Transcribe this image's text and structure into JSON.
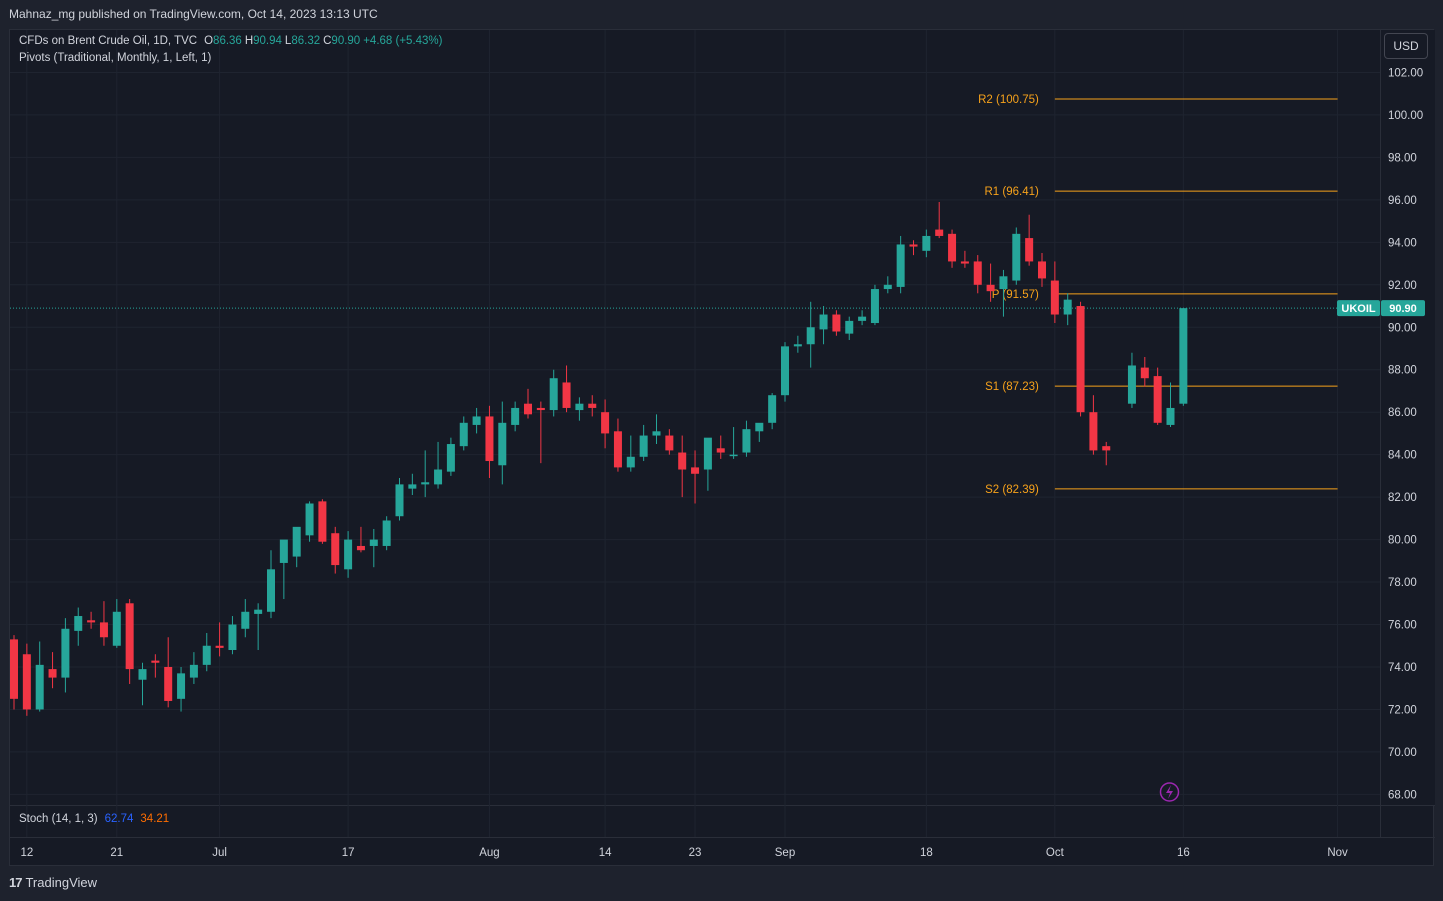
{
  "header": {
    "publish_text": "Mahnaz_mg published on TradingView.com, Oct 14, 2023 13:13 UTC"
  },
  "legend": {
    "symbol": "CFDs on Brent Crude Oil, 1D, TVC",
    "o_label": "O",
    "o_value": "86.36",
    "h_label": "H",
    "h_value": "90.94",
    "l_label": "L",
    "l_value": "86.32",
    "c_label": "C",
    "c_value": "90.90",
    "change": "+4.68 (+5.43%)",
    "pivots": "Pivots (Traditional, Monthly, 1, Left, 1)"
  },
  "currency_button": "USD",
  "stoch": {
    "label": "Stoch (14, 1, 3)",
    "k": "62.74",
    "d": "34.21"
  },
  "footer": {
    "logo_text": "TradingView",
    "logo_glyph": "17"
  },
  "colors": {
    "up": "#26a69a",
    "down": "#f23645",
    "pivot": "#f7a21b",
    "background": "#161a25",
    "grid": "#1f2430",
    "text": "#d1d4dc",
    "stoch_k": "#2962ff",
    "stoch_d": "#ff6d00"
  },
  "chart_data": {
    "type": "candlestick",
    "symbol_tag": "UKOIL",
    "last_price": 90.9,
    "last_price_label": "90.90",
    "ylim": [
      67.5,
      104
    ],
    "y_ticks": [
      "102.00",
      "100.00",
      "98.00",
      "96.00",
      "94.00",
      "92.00",
      "90.00",
      "88.00",
      "86.00",
      "84.00",
      "82.00",
      "80.00",
      "78.00",
      "76.00",
      "74.00",
      "72.00",
      "70.00",
      "68.00"
    ],
    "x_ticks": [
      {
        "index": 1,
        "label": "12"
      },
      {
        "index": 8,
        "label": "21"
      },
      {
        "index": 16,
        "label": "Jul"
      },
      {
        "index": 26,
        "label": "17"
      },
      {
        "index": 37,
        "label": "Aug"
      },
      {
        "index": 46,
        "label": "14"
      },
      {
        "index": 53,
        "label": "23"
      },
      {
        "index": 60,
        "label": "Sep"
      },
      {
        "index": 71,
        "label": "18"
      },
      {
        "index": 81,
        "label": "Oct"
      },
      {
        "index": 91,
        "label": "16"
      },
      {
        "index": 103,
        "label": "Nov"
      }
    ],
    "ohlc": [
      [
        75.3,
        75.5,
        72.0,
        72.5
      ],
      [
        74.6,
        75.1,
        71.7,
        72.0
      ],
      [
        72.0,
        75.2,
        71.9,
        74.1
      ],
      [
        73.9,
        74.7,
        73.0,
        73.5
      ],
      [
        73.5,
        76.3,
        72.8,
        75.8
      ],
      [
        75.7,
        76.8,
        75.0,
        76.4
      ],
      [
        76.2,
        76.6,
        75.8,
        76.1
      ],
      [
        76.1,
        77.1,
        75.0,
        75.4
      ],
      [
        75.0,
        77.2,
        74.9,
        76.6
      ],
      [
        77.0,
        77.2,
        73.2,
        73.9
      ],
      [
        73.4,
        74.2,
        72.2,
        73.9
      ],
      [
        74.3,
        74.6,
        73.5,
        74.2
      ],
      [
        74.0,
        75.4,
        72.1,
        72.4
      ],
      [
        72.5,
        74.0,
        71.9,
        73.7
      ],
      [
        73.5,
        74.7,
        73.2,
        74.1
      ],
      [
        74.1,
        75.6,
        73.8,
        75.0
      ],
      [
        75.0,
        76.1,
        74.5,
        74.9
      ],
      [
        74.8,
        76.4,
        74.6,
        76.0
      ],
      [
        75.8,
        77.2,
        75.4,
        76.6
      ],
      [
        76.5,
        77.0,
        74.8,
        76.7
      ],
      [
        76.6,
        79.5,
        76.3,
        78.6
      ],
      [
        78.9,
        79.3,
        77.2,
        80.0
      ],
      [
        79.2,
        80.2,
        78.7,
        80.6
      ],
      [
        80.2,
        81.8,
        79.9,
        81.7
      ],
      [
        81.8,
        81.9,
        79.8,
        79.9
      ],
      [
        80.3,
        80.6,
        78.4,
        78.8
      ],
      [
        78.6,
        80.4,
        78.2,
        80.0
      ],
      [
        79.7,
        80.6,
        79.4,
        79.5
      ],
      [
        79.7,
        80.5,
        78.7,
        80.0
      ],
      [
        79.7,
        81.1,
        79.5,
        80.9
      ],
      [
        81.1,
        82.9,
        80.9,
        82.6
      ],
      [
        82.4,
        83.1,
        82.1,
        82.6
      ],
      [
        82.6,
        84.2,
        82.0,
        82.7
      ],
      [
        82.6,
        84.6,
        82.4,
        83.3
      ],
      [
        83.2,
        84.8,
        83.0,
        84.5
      ],
      [
        84.4,
        85.8,
        84.2,
        85.5
      ],
      [
        85.4,
        86.2,
        85.0,
        85.8
      ],
      [
        85.8,
        86.3,
        82.9,
        83.7
      ],
      [
        83.5,
        86.5,
        82.6,
        85.5
      ],
      [
        85.4,
        86.5,
        85.1,
        86.2
      ],
      [
        86.4,
        87.1,
        85.7,
        85.9
      ],
      [
        86.2,
        86.5,
        83.6,
        86.1
      ],
      [
        86.1,
        88.0,
        85.8,
        87.6
      ],
      [
        87.4,
        88.2,
        86.0,
        86.2
      ],
      [
        86.1,
        86.7,
        85.6,
        86.4
      ],
      [
        86.4,
        86.8,
        85.8,
        86.2
      ],
      [
        86.0,
        86.6,
        84.3,
        85.0
      ],
      [
        85.1,
        85.7,
        83.2,
        83.4
      ],
      [
        83.4,
        84.9,
        83.2,
        83.9
      ],
      [
        83.9,
        85.4,
        83.7,
        84.9
      ],
      [
        84.9,
        85.9,
        84.5,
        85.1
      ],
      [
        84.9,
        85.2,
        84.0,
        84.2
      ],
      [
        84.1,
        84.9,
        82.0,
        83.3
      ],
      [
        83.4,
        84.2,
        81.7,
        83.1
      ],
      [
        83.3,
        84.4,
        82.3,
        84.8
      ],
      [
        84.3,
        84.9,
        83.8,
        84.1
      ],
      [
        84.0,
        85.3,
        83.8,
        84.0
      ],
      [
        84.1,
        85.6,
        83.9,
        85.2
      ],
      [
        85.1,
        85.4,
        84.6,
        85.5
      ],
      [
        85.5,
        86.9,
        85.2,
        86.8
      ],
      [
        86.8,
        89.3,
        86.5,
        89.1
      ],
      [
        89.1,
        89.6,
        88.8,
        89.2
      ],
      [
        89.2,
        91.2,
        88.1,
        90.0
      ],
      [
        89.9,
        91.0,
        89.2,
        90.6
      ],
      [
        90.6,
        90.8,
        89.6,
        89.8
      ],
      [
        89.7,
        90.5,
        89.4,
        90.3
      ],
      [
        90.3,
        90.8,
        90.1,
        90.5
      ],
      [
        90.2,
        92.0,
        90.1,
        91.8
      ],
      [
        91.8,
        92.4,
        91.6,
        92.0
      ],
      [
        91.9,
        94.3,
        91.6,
        93.9
      ],
      [
        93.9,
        94.1,
        93.4,
        93.8
      ],
      [
        93.6,
        94.6,
        93.3,
        94.3
      ],
      [
        94.6,
        95.9,
        94.2,
        94.3
      ],
      [
        94.4,
        94.6,
        92.8,
        93.1
      ],
      [
        93.1,
        93.6,
        92.8,
        93.0
      ],
      [
        93.1,
        93.4,
        91.6,
        92.0
      ],
      [
        92.0,
        93.0,
        91.2,
        91.7
      ],
      [
        91.8,
        92.7,
        90.5,
        92.4
      ],
      [
        92.2,
        94.7,
        92.0,
        94.4
      ],
      [
        94.2,
        95.3,
        92.9,
        93.1
      ],
      [
        93.1,
        93.5,
        91.9,
        92.3
      ],
      [
        92.2,
        93.1,
        90.2,
        90.6
      ],
      [
        90.6,
        91.6,
        90.1,
        91.3
      ],
      [
        91.0,
        91.2,
        85.8,
        86.0
      ],
      [
        86.0,
        86.8,
        84.0,
        84.2
      ],
      [
        84.4,
        84.6,
        83.5,
        84.2
      ],
      [
        null,
        null,
        null,
        null
      ],
      [
        86.4,
        88.8,
        86.2,
        88.2
      ],
      [
        88.1,
        88.6,
        87.2,
        87.6
      ],
      [
        87.7,
        88.1,
        85.4,
        85.5
      ],
      [
        85.4,
        87.4,
        85.3,
        86.2
      ],
      [
        86.4,
        90.9,
        86.3,
        90.9
      ]
    ],
    "pivots": [
      {
        "label": "R2 (100.75)",
        "value": 100.75
      },
      {
        "label": "R1 (96.41)",
        "value": 96.41
      },
      {
        "label": "P (91.57)",
        "value": 91.57
      },
      {
        "label": "S1 (87.23)",
        "value": 87.23
      },
      {
        "label": "S2 (82.39)",
        "value": 82.39
      }
    ]
  }
}
